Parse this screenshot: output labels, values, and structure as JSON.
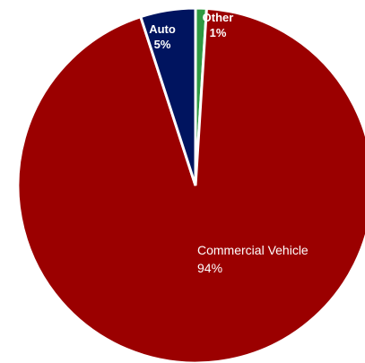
{
  "chart_data": {
    "type": "pie",
    "title": "",
    "slices": [
      {
        "name": "Other",
        "value": 1,
        "value_label": "1%",
        "color": "#2e9a41",
        "label_color": "#ffffff",
        "label_bold": true
      },
      {
        "name": "Commercial Vehicle",
        "value": 94,
        "value_label": "94%",
        "color": "#9b0000",
        "label_color": "#ffffff",
        "label_bold": false
      },
      {
        "name": "Auto",
        "value": 5,
        "value_label": "5%",
        "color": "#00145f",
        "label_color": "#ffffff",
        "label_bold": true
      }
    ],
    "start_angle_deg": 0,
    "direction": "clockwise",
    "legend": "none",
    "labels_inside": true
  }
}
